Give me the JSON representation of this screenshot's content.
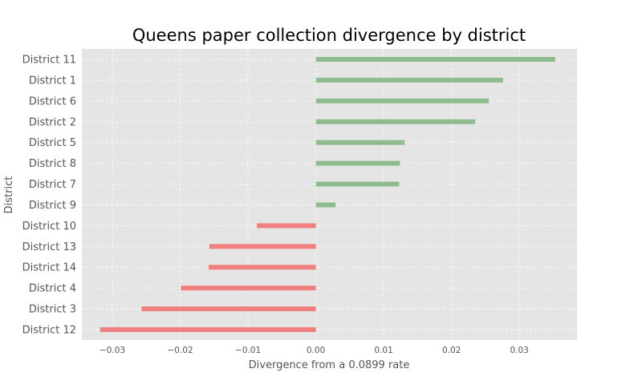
{
  "colors": {
    "positive": "#8fbc8f",
    "negative": "#f08080",
    "plot_background": "#e5e5e5",
    "grid": "#ffffff",
    "text": "#555555"
  },
  "chart_data": {
    "type": "bar",
    "orientation": "horizontal",
    "title": "Queens paper collection divergence by district",
    "xlabel": "Divergence from a 0.0899 rate",
    "ylabel": "District",
    "xlim": [
      -0.0345,
      0.0385
    ],
    "xticks": [
      -0.03,
      -0.02,
      -0.01,
      0.0,
      0.01,
      0.02,
      0.03
    ],
    "xtick_labels": [
      "−0.03",
      "−0.02",
      "−0.01",
      "0.00",
      "0.01",
      "0.02",
      "0.03"
    ],
    "grid": true,
    "categories": [
      "District 11",
      "District 1",
      "District 6",
      "District 2",
      "District 5",
      "District 8",
      "District 7",
      "District 9",
      "District 10",
      "District 13",
      "District 14",
      "District 4",
      "District 3",
      "District 12"
    ],
    "values": [
      0.0353,
      0.0276,
      0.0255,
      0.0235,
      0.0131,
      0.0124,
      0.0123,
      0.0029,
      -0.0087,
      -0.0157,
      -0.0158,
      -0.0199,
      -0.0257,
      -0.0318
    ]
  }
}
